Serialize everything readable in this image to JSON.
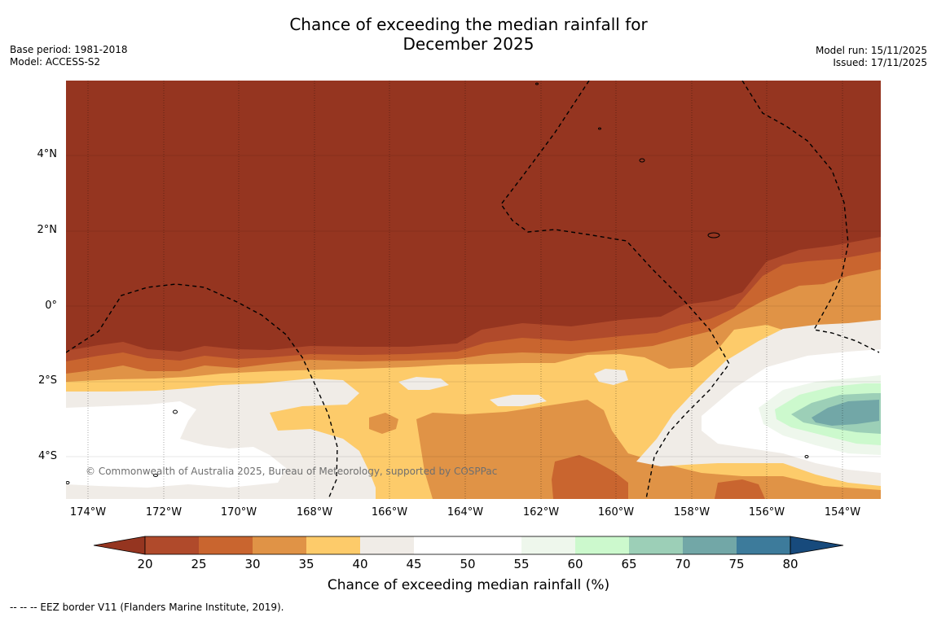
{
  "title": {
    "line1": "Chance of exceeding the median rainfall for",
    "line2": "December 2025"
  },
  "meta_left": {
    "base_period": "Base period: 1981-2018",
    "model": "Model: ACCESS-S2"
  },
  "meta_right": {
    "model_run": "Model run: 15/11/2025",
    "issued": "Issued: 17/11/2025"
  },
  "map": {
    "lat_labels": [
      "4°N",
      "2°N",
      "0°",
      "2°S",
      "4°S"
    ],
    "lon_labels": [
      "174°W",
      "172°W",
      "170°W",
      "168°W",
      "166°W",
      "164°W",
      "162°W",
      "160°W",
      "158°W",
      "156°W",
      "154°W"
    ],
    "lat_values": [
      4,
      2,
      0,
      -2,
      -4
    ],
    "lon_values": [
      -174,
      -172,
      -170,
      -168,
      -166,
      -164,
      -162,
      -160,
      -158,
      -156,
      -154
    ],
    "lon_range": [
      -174.6,
      -153.0
    ],
    "lat_range": [
      -5.1,
      6.0
    ],
    "copyright": "© Commonwealth of Australia 2025, Bureau of Meteorology, supported by COSPPac"
  },
  "colorbar": {
    "ticks": [
      "20",
      "25",
      "30",
      "35",
      "40",
      "45",
      "50",
      "55",
      "60",
      "65",
      "70",
      "75",
      "80"
    ],
    "colors": [
      "#953520",
      "#b04a2b",
      "#c9652f",
      "#e09346",
      "#fdcb6a",
      "#f0ece7",
      "#ffffff",
      "#ffffff",
      "#eef7ec",
      "#ccf9cd",
      "#9ccfb7",
      "#72a7a7",
      "#3d7b9b",
      "#174a7c"
    ],
    "label": "Chance of exceeding median rainfall (%)"
  },
  "footnote": "-- -- -- EEZ border V11 (Flanders Marine Institute, 2019)."
}
